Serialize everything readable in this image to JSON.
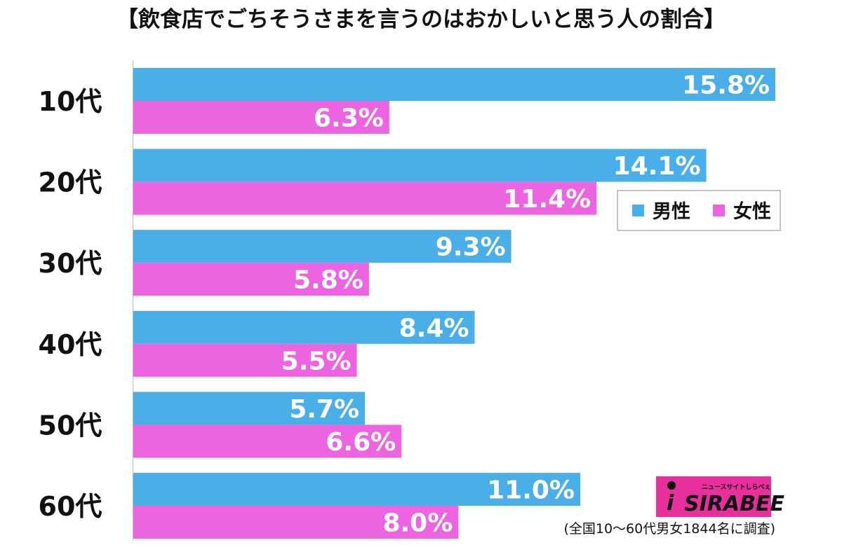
{
  "chart_data": {
    "type": "bar",
    "orientation": "horizontal",
    "title": "【飲食店でごちそうさまを言うのはおかしいと思う人の割合】",
    "categories": [
      "10代",
      "20代",
      "30代",
      "40代",
      "50代",
      "60代"
    ],
    "series": [
      {
        "name": "男性",
        "color": "#4aaee8",
        "values": [
          15.8,
          14.1,
          9.3,
          8.4,
          5.7,
          11.0
        ],
        "labels": [
          "15.8%",
          "14.1%",
          "9.3%",
          "8.4%",
          "5.7%",
          "11.0%"
        ]
      },
      {
        "name": "女性",
        "color": "#ed64e0",
        "values": [
          6.3,
          11.4,
          5.8,
          5.5,
          6.6,
          8.0
        ],
        "labels": [
          "6.3%",
          "11.4%",
          "5.8%",
          "5.5%",
          "6.6%",
          "8.0%"
        ]
      }
    ],
    "xlim": [
      0,
      16
    ],
    "grid": false,
    "legend": "right",
    "note": "(全国10〜60代男女1844名に調査)"
  },
  "logo": {
    "tagline": "ニュースサイトしらべぇ",
    "name": "SIRABEE",
    "glyph": "i",
    "background": "#e8309c"
  }
}
